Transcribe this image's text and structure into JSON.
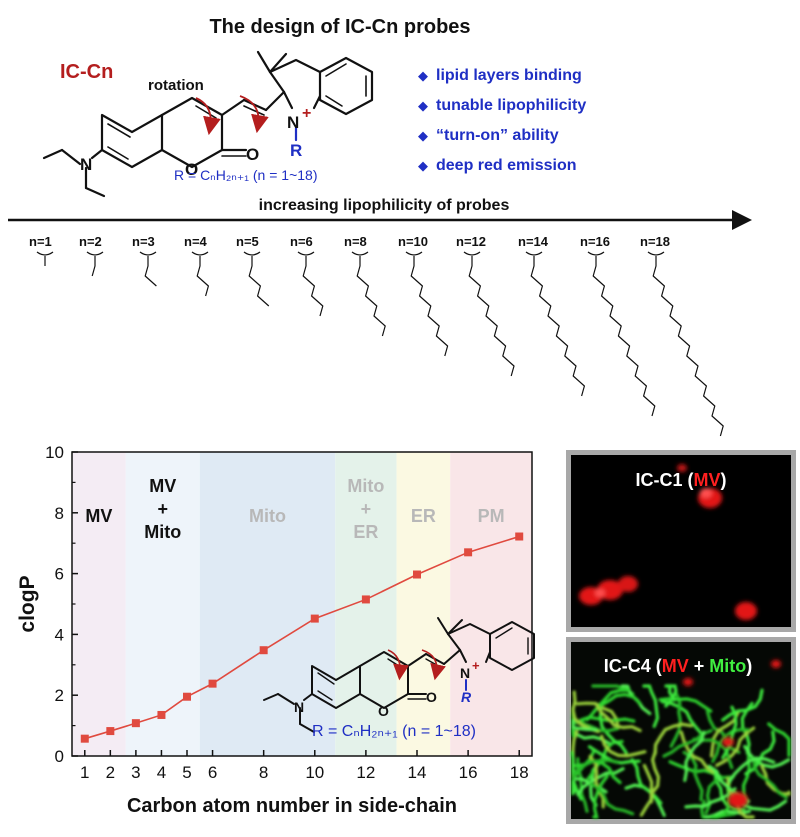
{
  "figure": {
    "title": "The design of IC-Cn probes",
    "probe_name": "IC-Cn",
    "rotation_label": "rotation",
    "structure": {
      "n_label": "N",
      "n_plus_label": "N",
      "plus": "+",
      "o_ring": "O",
      "o_carbonyl": "O",
      "r_label": "R",
      "r_formula": "R = CₙH₂ₙ₊₁ (n = 1~18)"
    },
    "features": [
      "lipid layers binding",
      "tunable lipophilicity",
      "“turn-on” ability",
      "deep red emission"
    ],
    "arrow_label": "increasing lipophilicity of probes",
    "chain_labels": [
      "n=1",
      "n=2",
      "n=3",
      "n=4",
      "n=5",
      "n=6",
      "n=8",
      "n=10",
      "n=12",
      "n=14",
      "n=16",
      "n=18"
    ]
  },
  "chart_data": {
    "type": "line",
    "xlabel": "Carbon atom number in side-chain",
    "ylabel": "clogP",
    "xlim": [
      0.5,
      18.5
    ],
    "ylim": [
      0,
      10
    ],
    "xticks": [
      1,
      2,
      3,
      4,
      5,
      6,
      8,
      10,
      12,
      14,
      16,
      18
    ],
    "yticks": [
      0,
      2,
      4,
      6,
      8,
      10
    ],
    "series": [
      {
        "x": [
          1,
          2,
          3,
          4,
          5,
          6,
          8,
          10,
          12,
          14,
          16,
          18
        ],
        "y": [
          0.57,
          0.82,
          1.08,
          1.35,
          1.95,
          2.38,
          3.48,
          4.52,
          5.15,
          5.97,
          6.7,
          7.22
        ],
        "color": "#e04a3f"
      }
    ],
    "regions": [
      {
        "label": [
          "MV"
        ],
        "x0": 0.5,
        "x1": 2.6,
        "fill": "#f4ecf4",
        "text_color": "#111111"
      },
      {
        "label": [
          "MV",
          "+",
          "Mito"
        ],
        "x0": 2.6,
        "x1": 5.5,
        "fill": "#eef4fa",
        "text_color": "#111111"
      },
      {
        "label": [
          "Mito"
        ],
        "x0": 5.5,
        "x1": 10.8,
        "fill": "#dfeaf4",
        "text_color": "#b8b8b8"
      },
      {
        "label": [
          "Mito",
          "+",
          "ER"
        ],
        "x0": 10.8,
        "x1": 13.2,
        "fill": "#e4f2ea",
        "text_color": "#b8b8b8"
      },
      {
        "label": [
          "ER"
        ],
        "x0": 13.2,
        "x1": 15.3,
        "fill": "#fbf9e2",
        "text_color": "#b8b8b8"
      },
      {
        "label": [
          "PM"
        ],
        "x0": 15.3,
        "x1": 18.5,
        "fill": "#f9e6e8",
        "text_color": "#b8b8b8"
      }
    ],
    "inset_formula": "R = CₙH₂ₙ₊₁ (n = 1~18)",
    "inset_atoms": {
      "n": "N",
      "n_plus": "N",
      "plus": "+",
      "o_ring": "O",
      "o_carbonyl": "O",
      "r": "R"
    }
  },
  "panels": [
    {
      "parts": [
        {
          "text": "IC-C1 (",
          "color": "#ffffff"
        },
        {
          "text": "MV",
          "color": "#ff2020"
        },
        {
          "text": ")",
          "color": "#ffffff"
        }
      ]
    },
    {
      "parts": [
        {
          "text": "IC-C4 (",
          "color": "#ffffff"
        },
        {
          "text": "MV",
          "color": "#ff2020"
        },
        {
          "text": " + ",
          "color": "#ffffff"
        },
        {
          "text": "Mito",
          "color": "#40ee40"
        },
        {
          "text": ")",
          "color": "#ffffff"
        }
      ]
    }
  ],
  "colors": {
    "accent_red": "#b41e1e",
    "accent_blue": "#1f2fc4",
    "line_red": "#e04a3f"
  }
}
